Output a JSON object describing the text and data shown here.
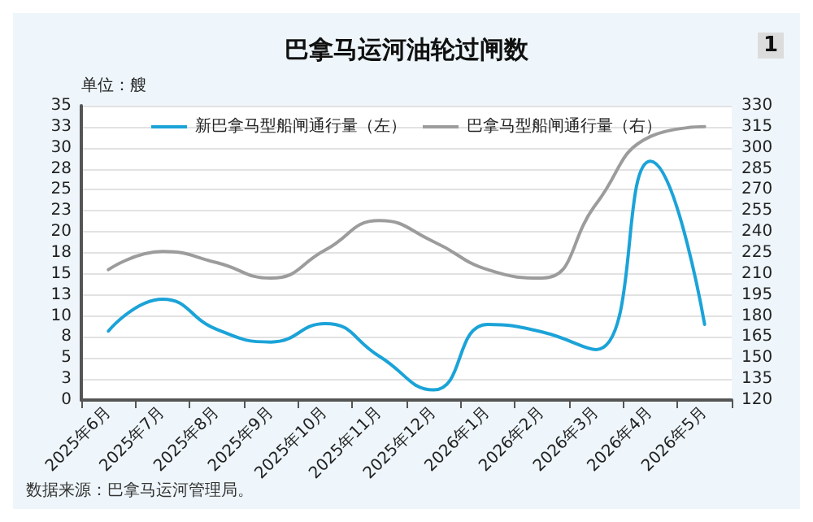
{
  "chart_data": {
    "type": "line",
    "title": "巴拿马运河油轮过闸数",
    "ylabel": "单位：艘",
    "annotations": [
      "1",
      "数据来源：巴拿马运河管理局。"
    ],
    "categories": [
      "2025年6月",
      "2025年7月",
      "2025年8月",
      "2025年9月",
      "2025年10月",
      "2025年11月",
      "2025年12月",
      "2026年1月",
      "2026年2月",
      "2026年3月",
      "2026年4月",
      "2026年5月"
    ],
    "series": [
      {
        "name": "新巴拿马型船闸通行量（左）",
        "color": "#1ba3d8",
        "values": [
          8.2,
          12.0,
          8.4,
          6.9,
          9.1,
          5.2,
          1.2,
          9.0,
          8.1,
          6.0,
          28.4,
          9.0
        ]
      },
      {
        "name": "巴拿马型船闸通行量（右）",
        "color": "#9c9c9c",
        "axis": "y2",
        "values": [
          213,
          226,
          218,
          207,
          227,
          248,
          233,
          213,
          207,
          260,
          308,
          315
        ]
      }
    ],
    "ylim": [
      0,
      35
    ],
    "yticks": [
      0,
      {
        "value": 2.5,
        "label": "3"
      },
      5,
      {
        "value": 7.5,
        "label": "8"
      },
      10,
      {
        "value": 12.5,
        "label": "13"
      },
      15,
      {
        "value": 17.5,
        "label": "18"
      },
      20,
      {
        "value": 22.5,
        "label": "23"
      },
      25,
      {
        "value": 27.5,
        "label": "28"
      },
      30,
      {
        "value": 32.5,
        "label": "33"
      },
      35
    ],
    "y2lim": [
      120,
      330
    ],
    "y2ticks": [
      120,
      135,
      150,
      165,
      180,
      195,
      210,
      225,
      240,
      255,
      270,
      285,
      300,
      315,
      330
    ],
    "grid": "y",
    "legend": "top",
    "marker": "none",
    "line_style": "solid"
  }
}
